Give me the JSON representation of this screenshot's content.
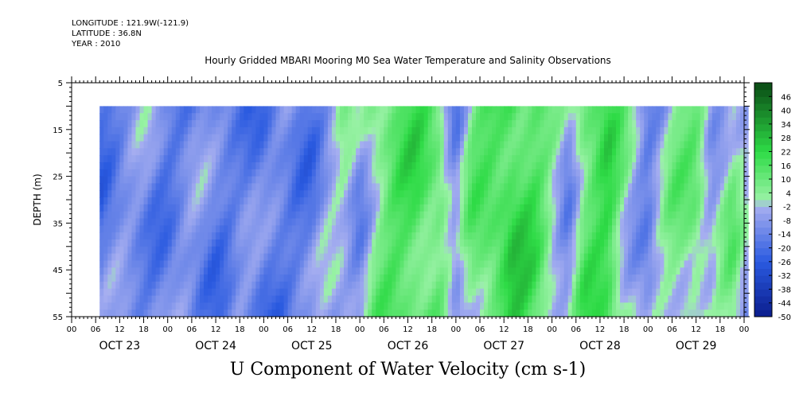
{
  "header": {
    "longitude": "LONGITUDE : 121.9W(-121.9)",
    "latitude": "LATITUDE : 36.8N",
    "year": "YEAR : 2010"
  },
  "title": "Hourly Gridded MBARI Mooring M0 Sea Water Temperature and Salinity Observations",
  "bottom_title": "U Component of Water Velocity (cm s-1)",
  "chart_data": {
    "type": "heatmap",
    "title": "Hourly Gridded MBARI Mooring M0 Sea Water Temperature and Salinity Observations",
    "variable": "U Component of Water Velocity (cm s-1)",
    "ylabel": "DEPTH (m)",
    "y_axis_inverted": true,
    "ylim": [
      5,
      55
    ],
    "y_ticks": [
      5,
      15,
      25,
      35,
      45,
      55
    ],
    "data_depth_range": [
      10,
      55
    ],
    "x_hour_ticks": [
      "00",
      "06",
      "12",
      "18",
      "00",
      "06",
      "12",
      "18",
      "00",
      "06",
      "12",
      "18",
      "00",
      "06",
      "12",
      "18",
      "00",
      "06",
      "12",
      "18",
      "00",
      "06",
      "12",
      "18",
      "00",
      "06",
      "12",
      "18",
      "00"
    ],
    "x_day_labels": [
      "OCT 23",
      "OCT 24",
      "OCT 25",
      "OCT 26",
      "OCT 27",
      "OCT 28",
      "OCT 29"
    ],
    "x_range_hours": [
      0,
      168
    ],
    "data_time_range_hours": [
      7,
      169
    ],
    "colorbar_labels": [
      "46",
      "40",
      "34",
      "28",
      "22",
      "16",
      "10",
      "4",
      "-2",
      "-8",
      "-14",
      "-20",
      "-26",
      "-32",
      "-38",
      "-44",
      "-50"
    ],
    "colorbar_range": [
      -50,
      52
    ],
    "colorbar_step": 3,
    "colors": {
      "neg_dark": "#0a1c8c",
      "neg_mid": "#2a5ae0",
      "neg_light": "#a6aef0",
      "pos_light": "#9af2a6",
      "pos_mid": "#2edb46",
      "pos_dark": "#0a4a14"
    },
    "mean_velocity_by_time": [
      {
        "hour": 7,
        "value": -16
      },
      {
        "hour": 12,
        "value": -13
      },
      {
        "hour": 18,
        "value": -11
      },
      {
        "hour": 24,
        "value": -14
      },
      {
        "hour": 30,
        "value": -12
      },
      {
        "hour": 36,
        "value": -15
      },
      {
        "hour": 42,
        "value": -11
      },
      {
        "hour": 48,
        "value": -18
      },
      {
        "hour": 54,
        "value": -13
      },
      {
        "hour": 60,
        "value": -15
      },
      {
        "hour": 64,
        "value": -8
      },
      {
        "hour": 68,
        "value": -2
      },
      {
        "hour": 72,
        "value": -8
      },
      {
        "hour": 76,
        "value": 6
      },
      {
        "hour": 80,
        "value": 12
      },
      {
        "hour": 86,
        "value": 16
      },
      {
        "hour": 92,
        "value": 11
      },
      {
        "hour": 96,
        "value": -12
      },
      {
        "hour": 100,
        "value": 8
      },
      {
        "hour": 104,
        "value": 14
      },
      {
        "hour": 110,
        "value": 22
      },
      {
        "hour": 116,
        "value": 14
      },
      {
        "hour": 120,
        "value": 2
      },
      {
        "hour": 124,
        "value": -8
      },
      {
        "hour": 128,
        "value": 12
      },
      {
        "hour": 134,
        "value": 18
      },
      {
        "hour": 138,
        "value": 4
      },
      {
        "hour": 144,
        "value": -12
      },
      {
        "hour": 150,
        "value": 4
      },
      {
        "hour": 156,
        "value": 10
      },
      {
        "hour": 160,
        "value": -4
      },
      {
        "hour": 165,
        "value": 6
      },
      {
        "hour": 169,
        "value": -8
      }
    ]
  }
}
